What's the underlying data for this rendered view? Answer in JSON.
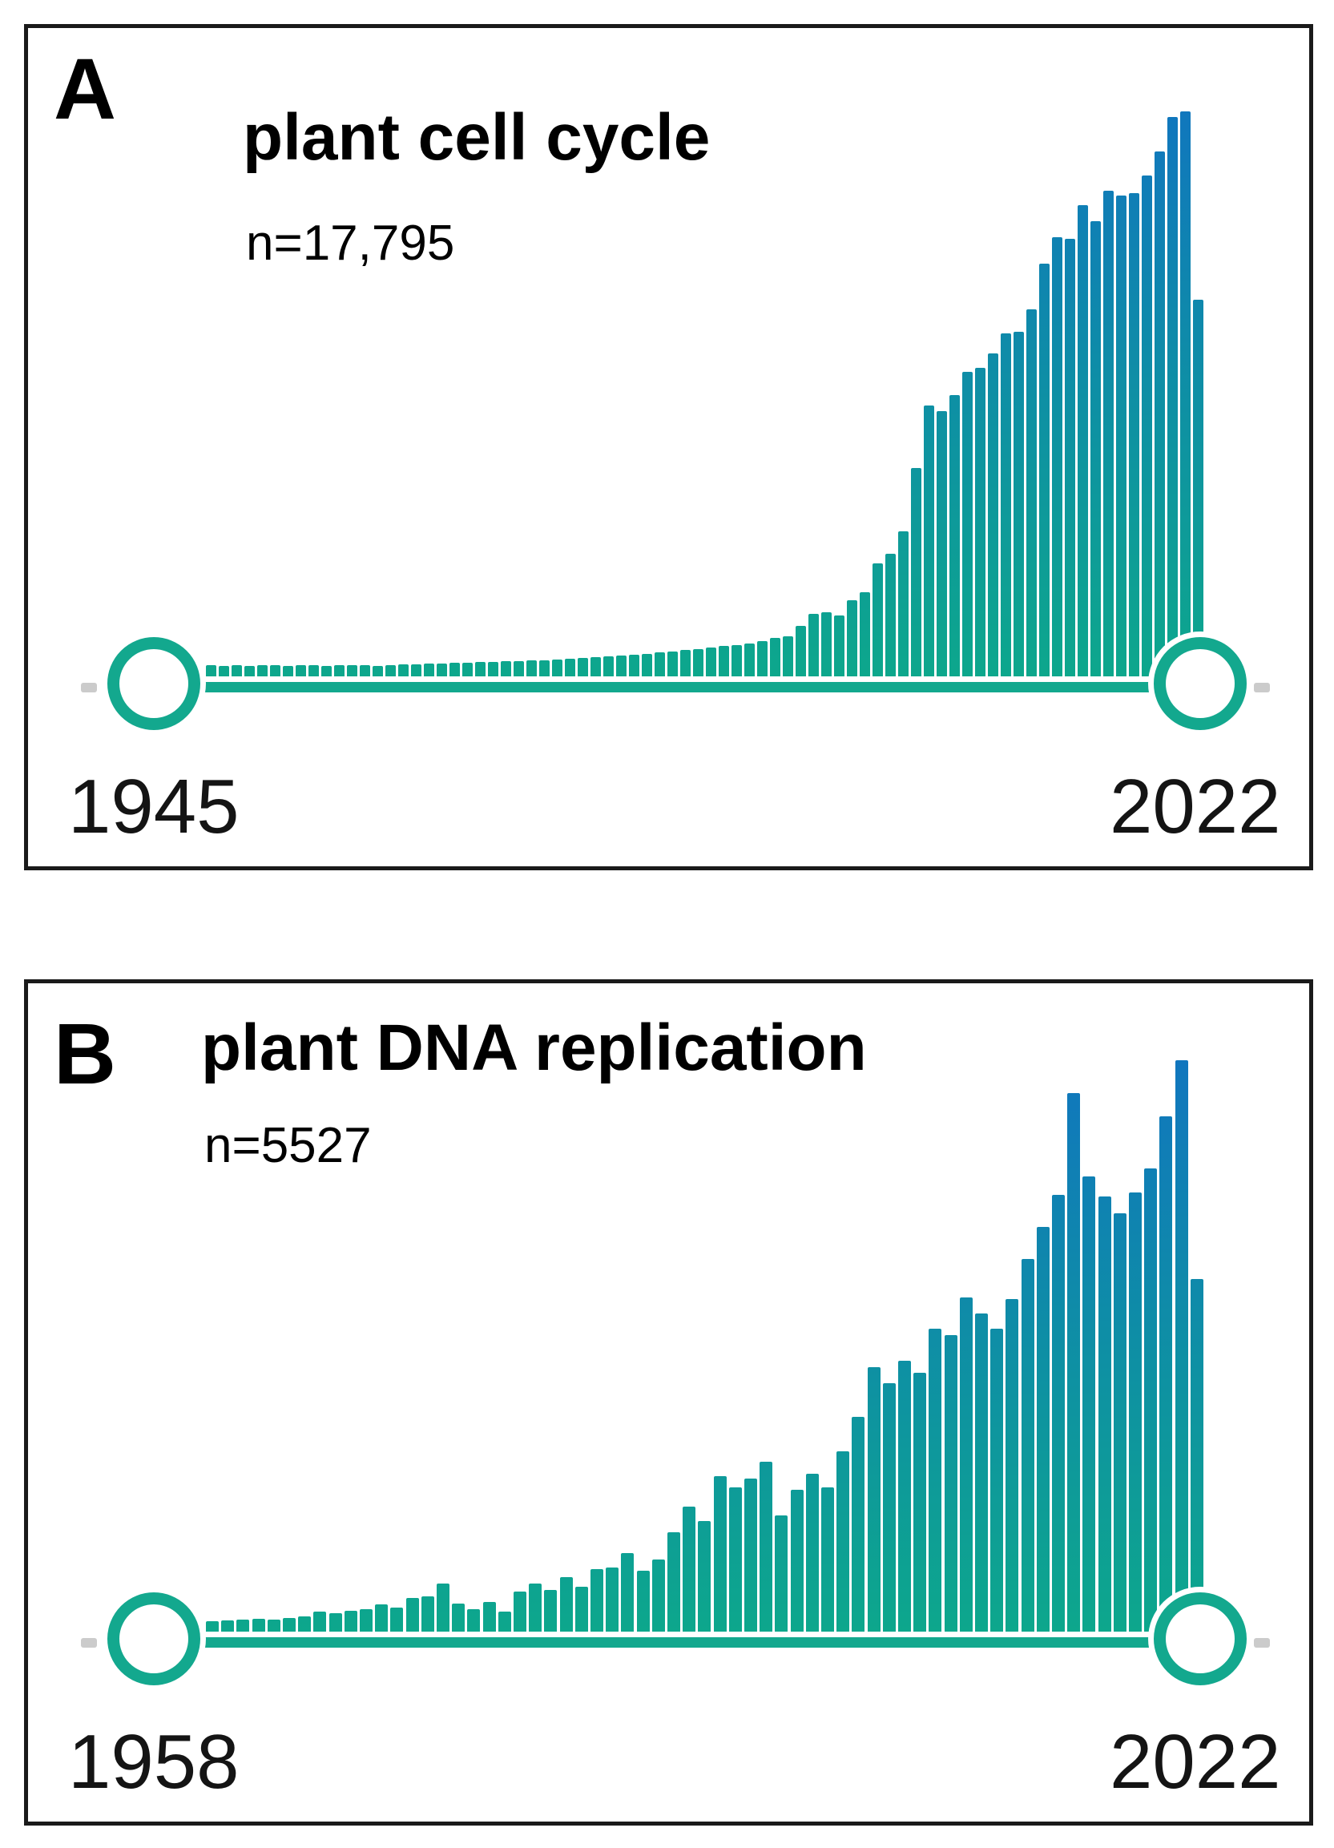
{
  "figure": {
    "background": "#ffffff",
    "panel_border_color": "#1a1a1a",
    "description": "Two stacked panels, each a publications-per-year timeline histogram between two circular timeline endpoints"
  },
  "colors": {
    "timeline_teal": "#13A88E",
    "bar_gradient_bottom_green": "#0DA78C",
    "bar_gradient_top_blue": "#1076BE",
    "endpoint_stub_gray": "#CBCBCB",
    "title_text": "#000000",
    "year_text": "#141414"
  },
  "chart_data": [
    {
      "type": "bar",
      "panel_label": "A",
      "title": "plant cell cycle",
      "annotation": "n=17,795",
      "total_n": 17795,
      "year_start": 1945,
      "year_end": 2022,
      "x_tick_labels": [
        "1945",
        "2022"
      ],
      "y_axis_shown": false,
      "values_unit": "publications per year; relative bar heights read from figure (no y-axis shown)",
      "legend": "none",
      "grid": false,
      "values": [
        14,
        13,
        14,
        13,
        14,
        14,
        13,
        14,
        14,
        13,
        14,
        14,
        14,
        13,
        14,
        15,
        15,
        16,
        16,
        17,
        17,
        18,
        18,
        19,
        19,
        20,
        20,
        21,
        22,
        23,
        24,
        25,
        26,
        27,
        28,
        30,
        31,
        33,
        34,
        36,
        38,
        39,
        41,
        44,
        48,
        50,
        63,
        78,
        80,
        76,
        95,
        105,
        141,
        153,
        181,
        260,
        338,
        331,
        351,
        380,
        385,
        403,
        428,
        430,
        458,
        515,
        548,
        546,
        588,
        568,
        606,
        600,
        603,
        625,
        655,
        698,
        705,
        470
      ]
    },
    {
      "type": "bar",
      "panel_label": "B",
      "title": "plant DNA replication",
      "annotation": "n=5527",
      "total_n": 5527,
      "year_start": 1958,
      "year_end": 2022,
      "x_tick_labels": [
        "1958",
        "2022"
      ],
      "y_axis_shown": false,
      "values_unit": "publications per year; relative bar heights read from figure (no y-axis shown)",
      "legend": "none",
      "grid": false,
      "values": [
        13,
        14,
        15,
        16,
        15,
        17,
        19,
        25,
        23,
        26,
        28,
        34,
        30,
        42,
        44,
        60,
        35,
        28,
        37,
        25,
        50,
        60,
        52,
        68,
        56,
        78,
        80,
        98,
        76,
        90,
        124,
        156,
        138,
        194,
        180,
        191,
        212,
        145,
        177,
        197,
        180,
        225,
        268,
        330,
        310,
        338,
        323,
        378,
        370,
        417,
        397,
        378,
        415,
        465,
        505,
        545,
        672,
        568,
        543,
        522,
        548,
        578,
        643,
        713,
        440
      ]
    }
  ]
}
